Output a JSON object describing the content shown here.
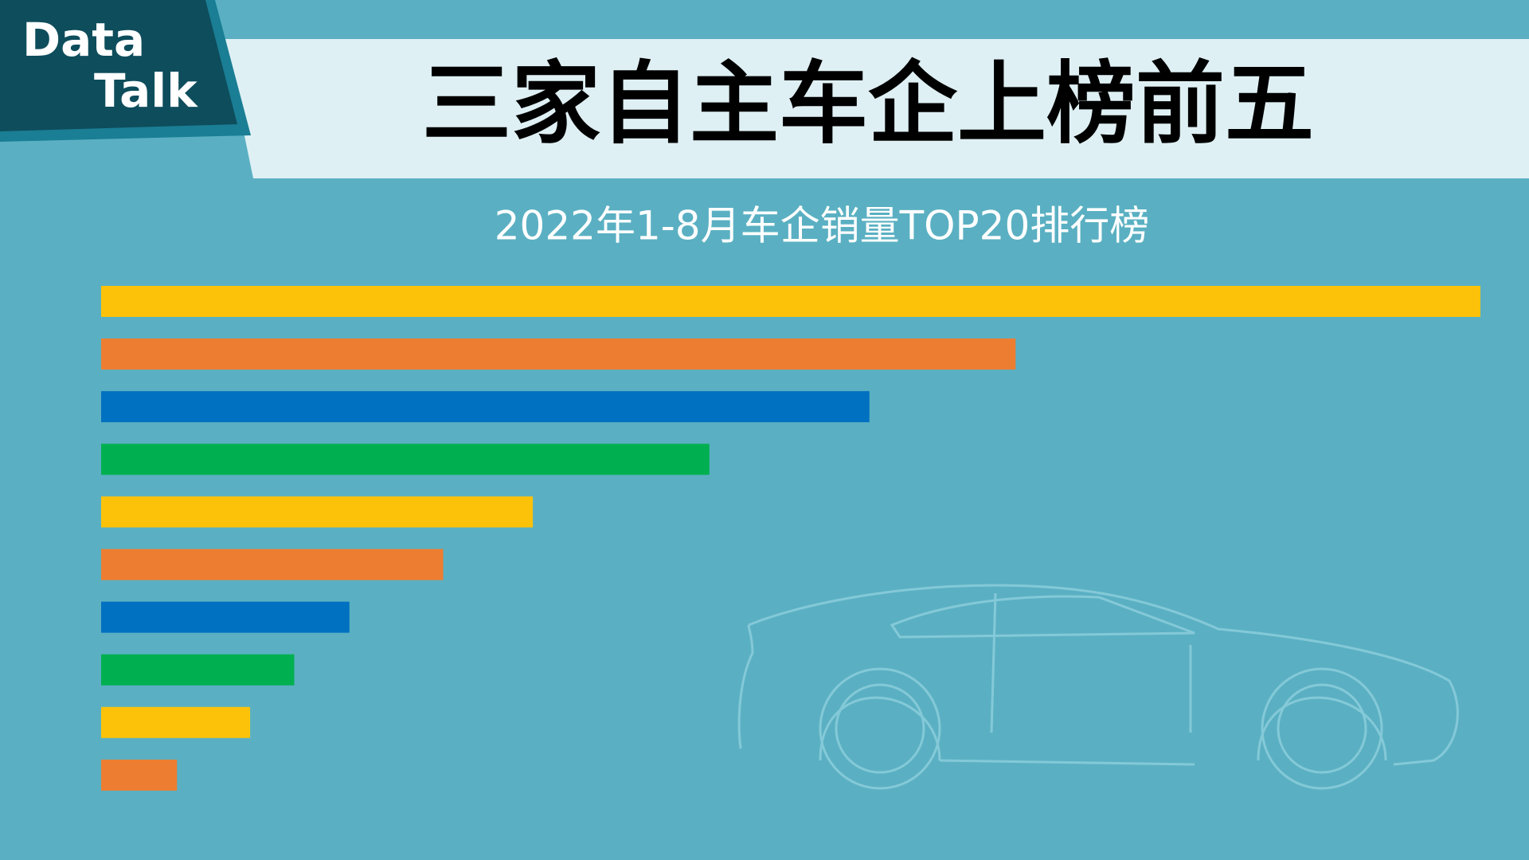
{
  "logo": {
    "line1": "Data",
    "line2": "Talk"
  },
  "chart_data": {
    "type": "hbar",
    "title": "三家自主车企上榜前五",
    "subtitle": "2022年1-8月车企销量TOP20排行榜",
    "categories": [
      null,
      null,
      null,
      null,
      null,
      null,
      null,
      null,
      null,
      null
    ],
    "values": [
      100,
      66.3,
      55.7,
      44.1,
      31.3,
      24.8,
      18.0,
      14.0,
      10.8,
      5.5
    ],
    "colors": [
      "#fcc20a",
      "#ed7d31",
      "#0070c0",
      "#00b050",
      "#fcc20a",
      "#ed7d31",
      "#0070c0",
      "#00b050",
      "#fcc20a",
      "#ed7d31"
    ],
    "xlim": [
      0,
      100
    ]
  }
}
